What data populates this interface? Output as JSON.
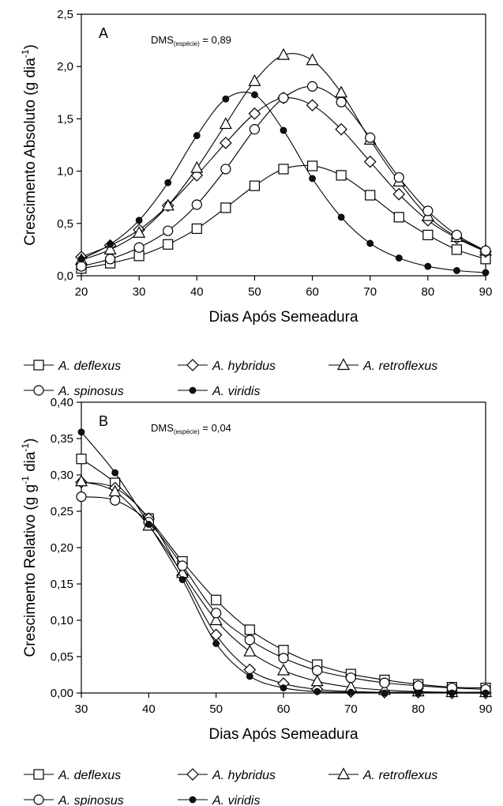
{
  "chart_data": [
    {
      "type": "line",
      "panel_label": "A",
      "annotation": {
        "main": "DMS",
        "sub": "(espécie)",
        "value": " = 0,89"
      },
      "xlabel": "Dias Após Semeadura",
      "ylabel_main": "Crescimento Absoluto (g dia",
      "ylabel_sup": "-1",
      "ylabel_end": ")",
      "xlim": [
        20,
        90
      ],
      "ylim": [
        0,
        2.5
      ],
      "xticks": [
        20,
        30,
        40,
        50,
        60,
        70,
        80,
        90
      ],
      "xtick_labels": [
        "20",
        "30",
        "40",
        "50",
        "60",
        "70",
        "80",
        "90"
      ],
      "yticks": [
        0,
        0.5,
        1.0,
        1.5,
        2.0,
        2.5
      ],
      "ytick_labels": [
        "0,0",
        "0,5",
        "1,0",
        "1,5",
        "2,0",
        "2,5"
      ],
      "x": [
        20,
        25,
        30,
        35,
        40,
        45,
        50,
        55,
        60,
        65,
        70,
        75,
        80,
        85,
        90
      ],
      "series": [
        {
          "name": "A. deflexus",
          "marker": "square",
          "values": [
            0.07,
            0.12,
            0.19,
            0.3,
            0.45,
            0.65,
            0.86,
            1.02,
            1.05,
            0.96,
            0.77,
            0.56,
            0.39,
            0.25,
            0.16
          ]
        },
        {
          "name": "A. hybridus",
          "marker": "diamond",
          "values": [
            0.18,
            0.29,
            0.44,
            0.67,
            0.96,
            1.27,
            1.55,
            1.7,
            1.63,
            1.4,
            1.09,
            0.78,
            0.53,
            0.36,
            0.23
          ]
        },
        {
          "name": "A. retroflexus",
          "marker": "triangle",
          "values": [
            0.15,
            0.25,
            0.41,
            0.67,
            1.03,
            1.45,
            1.86,
            2.11,
            2.06,
            1.75,
            1.3,
            0.9,
            0.57,
            0.37,
            0.24
          ]
        },
        {
          "name": "A. spinosus",
          "marker": "circle",
          "values": [
            0.09,
            0.16,
            0.27,
            0.43,
            0.68,
            1.02,
            1.4,
            1.7,
            1.81,
            1.66,
            1.32,
            0.94,
            0.62,
            0.39,
            0.24
          ]
        },
        {
          "name": "A. viridis",
          "marker": "filled-circle",
          "values": [
            0.16,
            0.3,
            0.53,
            0.89,
            1.34,
            1.69,
            1.73,
            1.39,
            0.93,
            0.56,
            0.31,
            0.17,
            0.09,
            0.05,
            0.03
          ]
        }
      ]
    },
    {
      "type": "line",
      "panel_label": "B",
      "annotation": {
        "main": "DMS",
        "sub": "(espécie)",
        "value": " = 0,04"
      },
      "xlabel": "Dias Após Semeadura",
      "ylabel_main": "Crescimento Relativo (g g",
      "ylabel_sup": "-1",
      "ylabel_mid": " dia",
      "ylabel_sup2": "-1",
      "ylabel_end": ")",
      "xlim": [
        30,
        90
      ],
      "ylim": [
        0,
        0.4
      ],
      "xticks": [
        30,
        40,
        50,
        60,
        70,
        80,
        90
      ],
      "xtick_labels": [
        "30",
        "40",
        "50",
        "60",
        "70",
        "80",
        "90"
      ],
      "yticks": [
        0,
        0.05,
        0.1,
        0.15,
        0.2,
        0.25,
        0.3,
        0.35,
        0.4
      ],
      "ytick_labels": [
        "0,00",
        "0,05",
        "0,10",
        "0,15",
        "0,20",
        "0,25",
        "0,30",
        "0,35",
        "0,40"
      ],
      "x": [
        30,
        35,
        40,
        45,
        50,
        55,
        60,
        65,
        70,
        75,
        80,
        85,
        90
      ],
      "series": [
        {
          "name": "A. deflexus",
          "marker": "square",
          "values": [
            0.322,
            0.289,
            0.24,
            0.181,
            0.128,
            0.087,
            0.059,
            0.039,
            0.026,
            0.018,
            0.012,
            0.008,
            0.007
          ]
        },
        {
          "name": "A. hybridus",
          "marker": "diamond",
          "values": [
            0.29,
            0.282,
            0.24,
            0.162,
            0.08,
            0.032,
            0.013,
            0.005,
            0.002,
            0.001,
            0.001,
            0.0,
            0.0
          ]
        },
        {
          "name": "A. retroflexus",
          "marker": "triangle",
          "values": [
            0.291,
            0.277,
            0.23,
            0.165,
            0.1,
            0.057,
            0.031,
            0.016,
            0.008,
            0.004,
            0.002,
            0.001,
            0.001
          ]
        },
        {
          "name": "A. spinosus",
          "marker": "circle",
          "values": [
            0.27,
            0.265,
            0.235,
            0.175,
            0.11,
            0.073,
            0.048,
            0.031,
            0.021,
            0.014,
            0.01,
            0.007,
            0.005
          ]
        },
        {
          "name": "A. viridis",
          "marker": "filled-circle",
          "values": [
            0.359,
            0.303,
            0.232,
            0.156,
            0.068,
            0.023,
            0.007,
            0.002,
            0.001,
            0.0,
            0.0,
            0.0,
            0.0
          ]
        }
      ]
    }
  ],
  "legend": [
    {
      "label": "A. deflexus",
      "marker": "square"
    },
    {
      "label": "A. hybridus",
      "marker": "diamond"
    },
    {
      "label": "A. retroflexus",
      "marker": "triangle"
    },
    {
      "label": "A. spinosus",
      "marker": "circle"
    },
    {
      "label": "A. viridis",
      "marker": "filled-circle"
    }
  ]
}
